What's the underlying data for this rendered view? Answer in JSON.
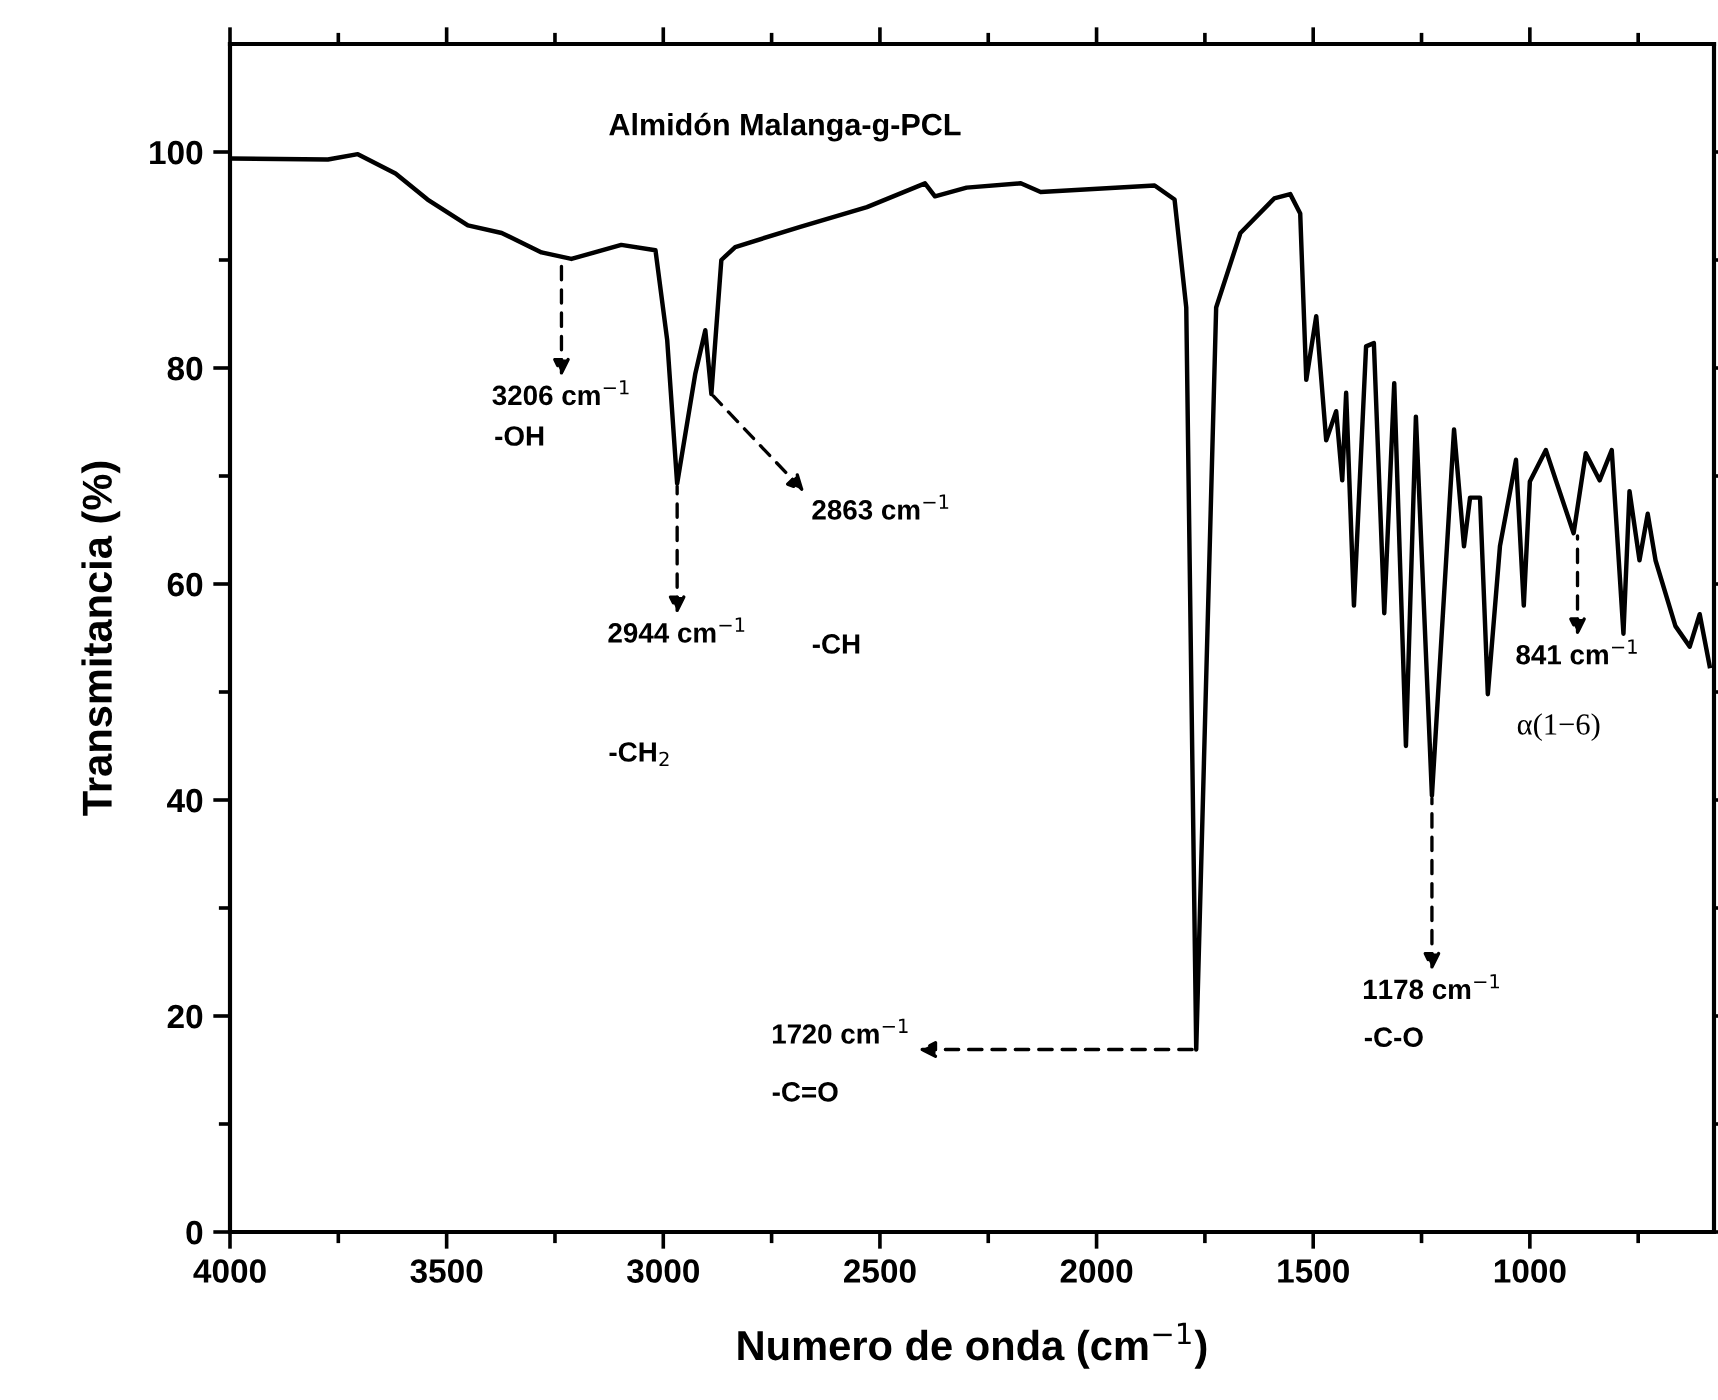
{
  "chart_data": {
    "type": "line",
    "title": "Almidón Malanga-g-PCL",
    "xlabel": "Numero de onda (cm$^{−1}$)",
    "ylabel": "Transmitancia (%)",
    "x": [
      4000,
      3774,
      3705,
      3618,
      3544,
      3451,
      3373,
      3281,
      3212,
      3097,
      3018,
      2991,
      2968,
      2926,
      2903,
      2889,
      2866,
      2834,
      2682,
      2530,
      2396,
      2373,
      2300,
      2175,
      2129,
      1866,
      1820,
      1793,
      1770,
      1724,
      1668,
      1590,
      1553,
      1530,
      1516,
      1493,
      1470,
      1447,
      1433,
      1424,
      1406,
      1378,
      1360,
      1336,
      1313,
      1286,
      1263,
      1226,
      1175,
      1152,
      1138,
      1115,
      1097,
      1069,
      1032,
      1014,
      1000,
      963,
      940,
      899,
      871,
      839,
      811,
      784,
      770,
      747,
      728,
      710,
      664,
      631,
      608,
      585
    ],
    "series": [
      {
        "color": "#000000",
        "values": [
          99.4,
          99.3,
          99.8,
          98.0,
          95.6,
          93.2,
          92.5,
          90.7,
          90.1,
          91.4,
          90.9,
          82.6,
          69.3,
          79.5,
          83.5,
          77.6,
          90.0,
          91.2,
          93.1,
          94.9,
          97.1,
          95.9,
          96.7,
          97.1,
          96.3,
          96.9,
          95.6,
          85.6,
          16.9,
          85.6,
          92.5,
          95.7,
          96.1,
          94.3,
          78.9,
          84.8,
          73.3,
          76.0,
          69.6,
          77.7,
          58.0,
          82.0,
          82.3,
          57.3,
          78.6,
          45.0,
          75.5,
          40.4,
          74.3,
          63.5,
          68.0,
          68.0,
          49.8,
          63.5,
          71.5,
          58.0,
          69.5,
          72.4,
          69.6,
          64.7,
          72.1,
          69.6,
          72.4,
          55.4,
          68.6,
          62.2,
          66.5,
          62.2,
          56.1,
          54.2,
          57.2,
          52.4
        ]
      }
    ],
    "xlim": [
      4000,
      575
    ],
    "xticks": [
      4000,
      {
        "value": 3750,
        "label": null
      },
      3500,
      {
        "value": 3250,
        "label": null
      },
      3000,
      {
        "value": 2750,
        "label": null
      },
      2500,
      {
        "value": 2250,
        "label": null
      },
      2000,
      {
        "value": 1750,
        "label": null
      },
      1500,
      {
        "value": 1250,
        "label": null
      },
      1000,
      {
        "value": 750,
        "label": null
      }
    ],
    "ylim": [
      0,
      110
    ],
    "yticks": [
      0,
      {
        "value": 10,
        "label": null
      },
      20,
      {
        "value": 30,
        "label": null
      },
      40,
      {
        "value": 50,
        "label": null
      },
      60,
      {
        "value": 70,
        "label": null
      },
      80,
      {
        "value": 90,
        "label": null
      },
      100
    ],
    "grid": false,
    "marker": "none",
    "line_style": "solid",
    "annotations": [
      {
        "text": "3206 cm$^{−1}$",
        "x": 3235,
        "y": 90.0
      },
      "-OH",
      {
        "text": "2944 cm$^{−1}$",
        "x": 2968,
        "y": 69.3
      },
      "-CH$_{2}$",
      {
        "text": "2863 cm$^{−1}$",
        "x": 2889,
        "y": 77.6
      },
      "-CH",
      {
        "text": "1720 cm$^{−1}$",
        "x": 1770,
        "y": 16.9
      },
      "-C=O",
      {
        "text": "1178 cm$^{−1}$",
        "x": 1226,
        "y": 40.4
      },
      "-C-O",
      {
        "text": "841 cm$^{−1}$",
        "x": 890,
        "y": 64.7
      },
      "α(1−6)"
    ]
  }
}
